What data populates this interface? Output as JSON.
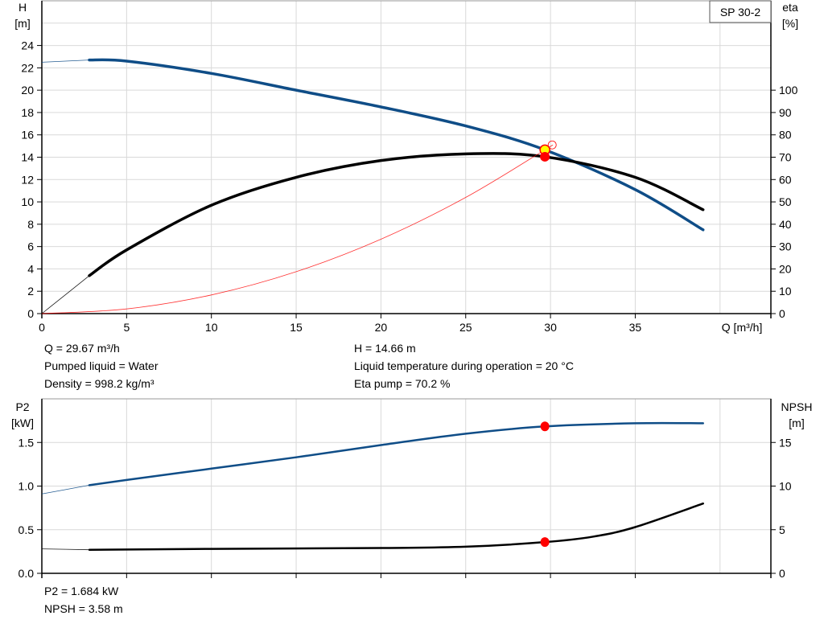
{
  "legend_label": "SP 30-2",
  "info_top": {
    "q": "Q = 29.67 m³/h",
    "h": "H = 14.66 m",
    "liquid": "Pumped liquid = Water",
    "temperature": "Liquid temperature during operation = 20 °C",
    "density": "Density = 998.2 kg/m³",
    "eta": "Eta pump = 70.2 %"
  },
  "info_bottom": {
    "p2": "P2 = 1.684 kW",
    "npsh": "NPSH = 3.58 m"
  },
  "colors": {
    "head": "#0f4d87",
    "eta": "#000000",
    "system": "#ff0000",
    "p2": "#0f4d87",
    "npsh": "#000000",
    "grid": "#d9d9d9",
    "duty_point": "#ffff00",
    "marker": "#ff0000"
  },
  "chart_data": [
    {
      "type": "line",
      "title": "",
      "xlabel": "Q [m³/h]",
      "ylabel": "H\n[m]",
      "y2label": "eta\n[%]",
      "xlim": [
        0,
        43
      ],
      "ylim": [
        0,
        28
      ],
      "y2lim": [
        0,
        140
      ],
      "xticks": [
        0,
        5,
        10,
        15,
        20,
        25,
        30,
        35
      ],
      "yticks": [
        0,
        2,
        4,
        6,
        8,
        10,
        12,
        14,
        16,
        18,
        20,
        22,
        24
      ],
      "y2ticks": [
        0,
        10,
        20,
        30,
        40,
        50,
        60,
        70,
        80,
        90,
        100
      ],
      "grid": true,
      "series": [
        {
          "id": "head",
          "axis": "y",
          "x": [
            0,
            2.8,
            5,
            10,
            15,
            20,
            25,
            29.67,
            35,
            39
          ],
          "y": [
            22.5,
            22.7,
            22.6,
            21.5,
            20.0,
            18.5,
            16.8,
            14.66,
            11.1,
            7.5
          ],
          "thin_until": 2.8
        },
        {
          "id": "eta",
          "axis": "y2",
          "x": [
            0,
            2.8,
            5,
            10,
            15,
            20,
            25,
            29.67,
            35,
            39
          ],
          "y": [
            0,
            17,
            28.5,
            48.5,
            61,
            68.5,
            71.5,
            70.2,
            61,
            46.5
          ],
          "thin_until": 2.8
        },
        {
          "id": "system",
          "axis": "y",
          "x": [
            0,
            5,
            10,
            15,
            20,
            25,
            29.67,
            30
          ],
          "y": [
            0,
            0.42,
            1.67,
            3.75,
            6.66,
            10.4,
            14.66,
            14.98
          ],
          "thin_until": 30
        }
      ],
      "points": [
        {
          "id": "duty-point",
          "x": 29.67,
          "y": 14.66,
          "axis": "y",
          "style": "yellow"
        },
        {
          "id": "eta-point",
          "x": 29.67,
          "y": 70.2,
          "axis": "y2",
          "style": "red"
        },
        {
          "id": "system-end",
          "x": 30.1,
          "y": 15.1,
          "axis": "y",
          "style": "open"
        }
      ]
    },
    {
      "type": "line",
      "title": "",
      "ylabel": "P2\n[kW]",
      "y2label": "NPSH\n[m]",
      "xlim": [
        0,
        43
      ],
      "ylim": [
        0,
        2.0
      ],
      "y2lim": [
        0,
        20
      ],
      "xticks": [
        0,
        5,
        10,
        15,
        20,
        25,
        30,
        35
      ],
      "yticks": [
        "0.0",
        "0.5",
        "1.0",
        "1.5"
      ],
      "y2ticks": [
        0,
        5,
        10,
        15
      ],
      "grid": true,
      "series": [
        {
          "id": "p2",
          "axis": "y",
          "x": [
            0,
            2.8,
            5,
            10,
            15,
            20,
            25,
            29.67,
            35,
            39
          ],
          "y": [
            0.91,
            1.01,
            1.07,
            1.2,
            1.33,
            1.47,
            1.6,
            1.684,
            1.72,
            1.72
          ],
          "thin_until": 2.8
        },
        {
          "id": "npsh",
          "axis": "y2",
          "x": [
            0,
            2.8,
            10,
            20,
            25,
            29.67,
            32.5,
            35,
            39
          ],
          "y": [
            2.8,
            2.7,
            2.8,
            2.9,
            3.05,
            3.58,
            4.2,
            5.3,
            8.0
          ],
          "thin_until": 2.8
        }
      ],
      "points": [
        {
          "id": "p2-point",
          "x": 29.67,
          "y": 1.684,
          "axis": "y",
          "style": "red"
        },
        {
          "id": "npsh-point",
          "x": 29.67,
          "y": 3.58,
          "axis": "y2",
          "style": "red"
        }
      ]
    }
  ]
}
